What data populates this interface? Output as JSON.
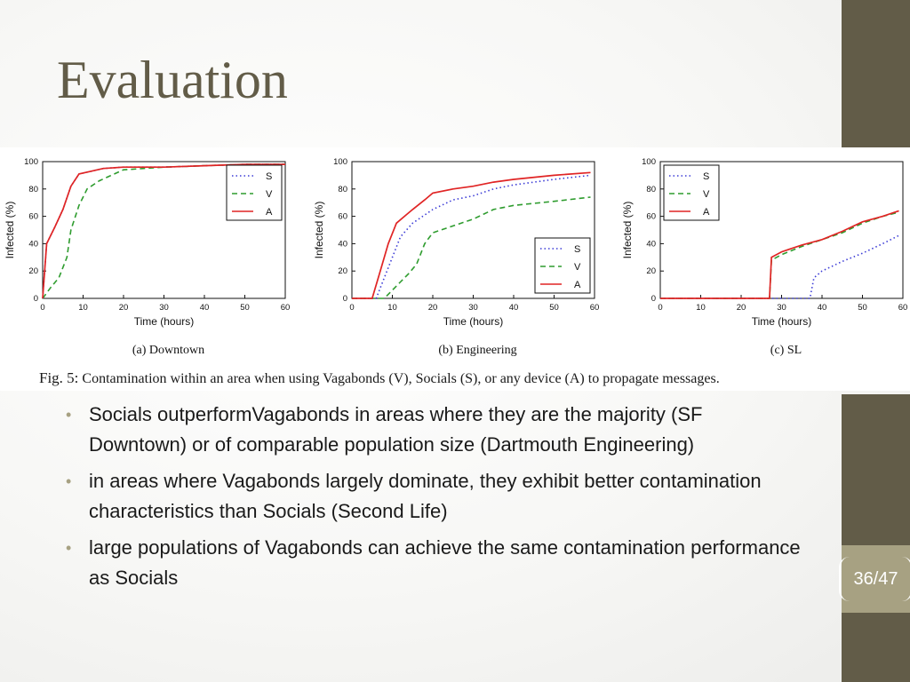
{
  "slide": {
    "title": "Evaluation",
    "page_number": "36/47"
  },
  "figure": {
    "caption_label": "Fig. 5:",
    "caption_text": "Contamination within an area when using Vagabonds (V), Socials (S), or any device (A) to propagate messages."
  },
  "bullets": [
    "Socials outperformVagabonds in areas where they are the majority (SF Downtown) or of comparable population size (Dartmouth Engineering)",
    "in areas where Vagabonds largely dominate, they exhibit better contamination characteristics than Socials (Second Life)",
    "large populations of Vagabonds can achieve the same contamination performance as Socials"
  ],
  "colors": {
    "accent_dark": "#625c48",
    "accent_light": "#a7a182",
    "series_S": "#3b3bd6",
    "series_V": "#2e9c2e",
    "series_A": "#e02424"
  },
  "chart_data": [
    {
      "type": "line",
      "subtitle": "(a) Downtown",
      "xlabel": "Time (hours)",
      "ylabel": "Infected (%)",
      "xlim": [
        0,
        60
      ],
      "ylim": [
        0,
        100
      ],
      "xticks": [
        0,
        10,
        20,
        30,
        40,
        50,
        60
      ],
      "yticks": [
        0,
        20,
        40,
        60,
        80,
        100
      ],
      "grid": false,
      "legend_position": "top-right",
      "series": [
        {
          "name": "S",
          "style": "dotted",
          "x": [
            0,
            1,
            3,
            5,
            7,
            9,
            12,
            15,
            20,
            30,
            40,
            50,
            60
          ],
          "y": [
            0,
            40,
            52,
            65,
            82,
            91,
            93,
            95,
            96,
            96,
            97,
            98,
            98
          ]
        },
        {
          "name": "V",
          "style": "dashed",
          "x": [
            0,
            2,
            4,
            6,
            7,
            9,
            11,
            14,
            17,
            20,
            25,
            30,
            40,
            50,
            60
          ],
          "y": [
            0,
            8,
            15,
            30,
            50,
            68,
            80,
            86,
            90,
            94,
            95,
            96,
            97,
            98,
            98
          ]
        },
        {
          "name": "A",
          "style": "solid",
          "x": [
            0,
            1,
            3,
            5,
            7,
            9,
            12,
            15,
            20,
            30,
            40,
            50,
            60
          ],
          "y": [
            0,
            40,
            52,
            65,
            82,
            91,
            93,
            95,
            96,
            96,
            97,
            98,
            98
          ]
        }
      ]
    },
    {
      "type": "line",
      "subtitle": "(b) Engineering",
      "xlabel": "Time (hours)",
      "ylabel": "Infected (%)",
      "xlim": [
        0,
        60
      ],
      "ylim": [
        0,
        100
      ],
      "xticks": [
        0,
        10,
        20,
        30,
        40,
        50,
        60
      ],
      "yticks": [
        0,
        20,
        40,
        60,
        80,
        100
      ],
      "grid": false,
      "legend_position": "bottom-right",
      "series": [
        {
          "name": "S",
          "style": "dotted",
          "x": [
            0,
            6,
            8,
            10,
            12,
            15,
            20,
            25,
            30,
            35,
            40,
            50,
            59
          ],
          "y": [
            0,
            0,
            15,
            30,
            45,
            55,
            65,
            72,
            75,
            80,
            83,
            87,
            90
          ]
        },
        {
          "name": "V",
          "style": "dashed",
          "x": [
            0,
            8,
            10,
            12,
            14,
            16,
            18,
            20,
            25,
            30,
            35,
            40,
            50,
            59
          ],
          "y": [
            0,
            0,
            6,
            12,
            18,
            25,
            40,
            48,
            53,
            58,
            65,
            68,
            71,
            74
          ]
        },
        {
          "name": "A",
          "style": "solid",
          "x": [
            0,
            5,
            7,
            9,
            11,
            13,
            15,
            18,
            20,
            25,
            30,
            35,
            40,
            50,
            59
          ],
          "y": [
            0,
            0,
            20,
            40,
            55,
            60,
            65,
            72,
            77,
            80,
            82,
            85,
            87,
            90,
            92
          ]
        }
      ]
    },
    {
      "type": "line",
      "subtitle": "(c) SL",
      "xlabel": "Time (hours)",
      "ylabel": "Infected (%)",
      "xlim": [
        0,
        60
      ],
      "ylim": [
        0,
        100
      ],
      "xticks": [
        0,
        10,
        20,
        30,
        40,
        50,
        60
      ],
      "yticks": [
        0,
        20,
        40,
        60,
        80,
        100
      ],
      "grid": false,
      "legend_position": "top-left",
      "series": [
        {
          "name": "S",
          "style": "dotted",
          "x": [
            0,
            37,
            38,
            40,
            45,
            50,
            55,
            59
          ],
          "y": [
            0,
            0,
            15,
            20,
            27,
            33,
            40,
            46
          ]
        },
        {
          "name": "V",
          "style": "dashed",
          "x": [
            0,
            27,
            27.5,
            30,
            35,
            40,
            45,
            50,
            55,
            59
          ],
          "y": [
            0,
            0,
            28,
            32,
            38,
            43,
            48,
            55,
            60,
            63
          ]
        },
        {
          "name": "A",
          "style": "solid",
          "x": [
            0,
            27,
            27.5,
            30,
            35,
            40,
            45,
            50,
            55,
            59
          ],
          "y": [
            0,
            0,
            30,
            34,
            39,
            43,
            49,
            56,
            60,
            64
          ]
        }
      ]
    }
  ]
}
